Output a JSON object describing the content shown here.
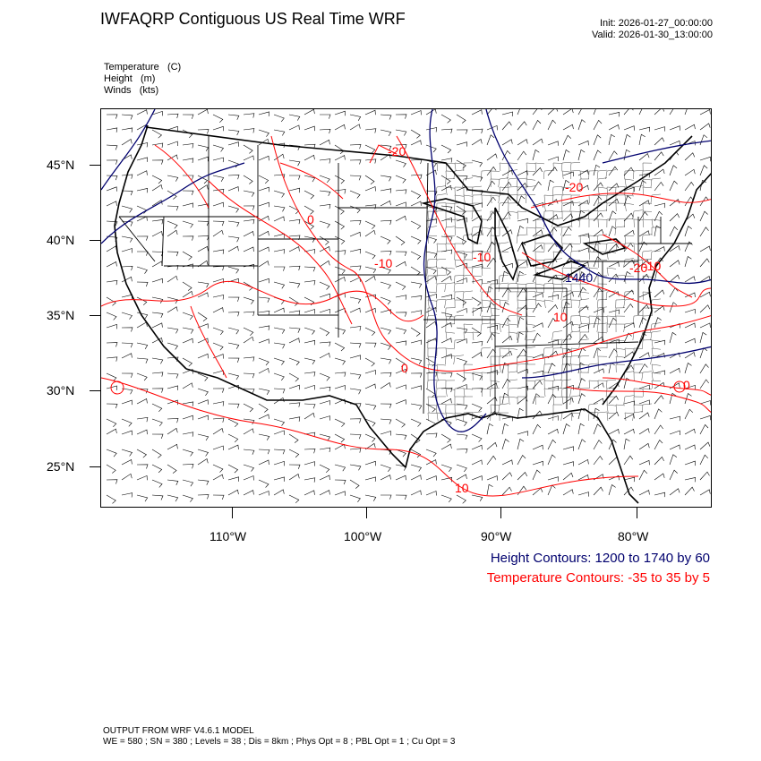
{
  "title": "IWFAQRP Contiguous US Real Time WRF",
  "init_label": "Init: 2026-01-27_00:00:00",
  "valid_label": "Valid: 2026-01-30_13:00:00",
  "variables": [
    {
      "name": "Temperature",
      "unit": "(C)"
    },
    {
      "name": "Height",
      "unit": "(m)"
    },
    {
      "name": "Winds",
      "unit": "(kts)"
    }
  ],
  "lat_labels": [
    "45°N",
    "40°N",
    "35°N",
    "30°N",
    "25°N"
  ],
  "lon_labels": [
    "110°W",
    "100°W",
    "90°W",
    "80°W"
  ],
  "contour_labels": [
    "-20",
    "-20",
    "-10",
    "-20",
    "-10",
    "0",
    "0",
    "0",
    "10",
    "10",
    "-10",
    "1440"
  ],
  "legend": {
    "height": "Height Contours: 1200 to 1740 by 60",
    "temperature": "Temperature Contours: -35 to 35 by 5"
  },
  "footer": {
    "line1": "OUTPUT FROM WRF V4.6.1 MODEL",
    "line2": "WE = 580 ; SN = 380 ; Levels = 38 ; Dis = 8km ; Phys Opt = 8 ; PBL Opt = 1 ; Cu Opt = 3"
  },
  "colors": {
    "height_contour": "#00006e",
    "temperature_contour": "#ff0000",
    "boundaries": "#000000"
  }
}
